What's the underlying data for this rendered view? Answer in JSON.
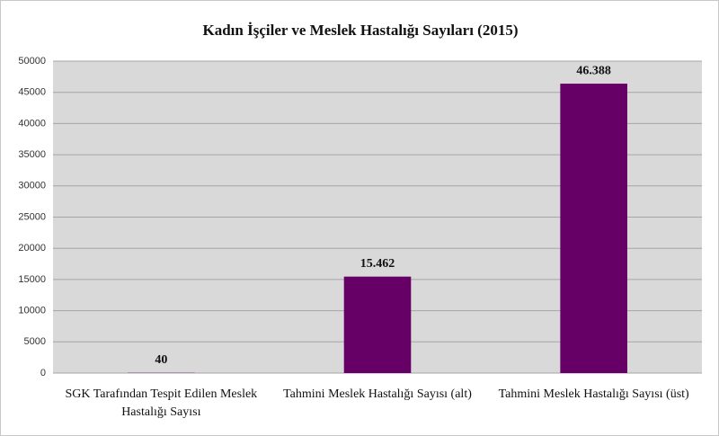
{
  "chart_data": {
    "type": "bar",
    "title": "Kadın İşçiler ve Meslek Hastalığı Sayıları (2015)",
    "categories": [
      "SGK Tarafından Tespit Edilen Meslek Hastalığı Sayısı",
      "Tahmini Meslek Hastalığı Sayısı (alt)",
      "Tahmini Meslek Hastalığı Sayısı (üst)"
    ],
    "values": [
      40,
      15462,
      46388
    ],
    "value_labels": [
      "40",
      "15.462",
      "46.388"
    ],
    "color": "#660066",
    "ylim": [
      0,
      50000
    ],
    "yticks": [
      0,
      5000,
      10000,
      15000,
      20000,
      25000,
      30000,
      35000,
      40000,
      45000,
      50000
    ],
    "grid": true
  }
}
